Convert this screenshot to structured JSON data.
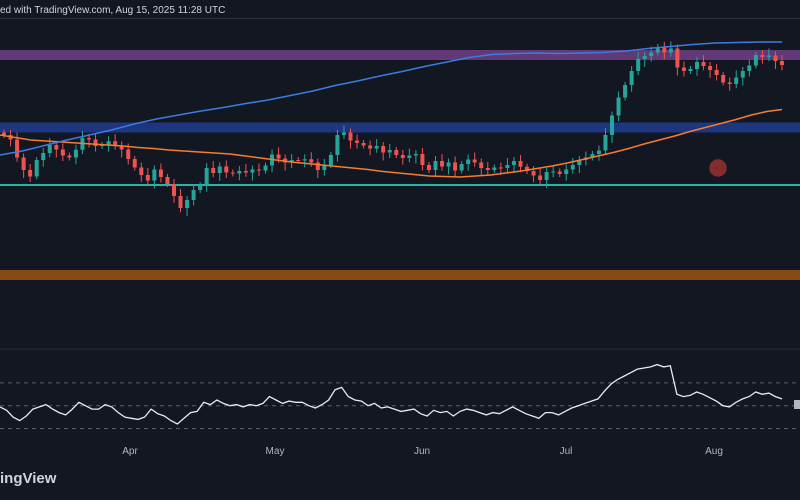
{
  "header": {
    "text": "ed with TradingView.com, Aug 15, 2025 11:28 UTC"
  },
  "branding": {
    "logo_text": "ingView"
  },
  "colors": {
    "background": "#131722",
    "candle_up": "#26a69a",
    "candle_down": "#ef5350",
    "ma_fast": "#f57c32",
    "ma_slow": "#3d7be0",
    "rsi_line": "#e8eaf0",
    "zone_purple": "#6a3d80",
    "zone_blue": "#1f3a8a",
    "zone_orange": "#8a4d14",
    "support_line": "#2bb3a6",
    "cross_marker": "#e0403a"
  },
  "chart_data": {
    "type": "candlestick",
    "x_axis_labels": [
      "Apr",
      "May",
      "Jun",
      "Jul",
      "Aug"
    ],
    "candles": [],
    "price_series_close": [
      66.0,
      64.2,
      57.0,
      52.0,
      49.4,
      56.0,
      58.8,
      62.0,
      60.2,
      57.8,
      57.0,
      60.1,
      64.8,
      64.2,
      61.6,
      62.0,
      63.5,
      61.8,
      60.2,
      56.4,
      53.0,
      50.0,
      47.8,
      52.2,
      49.2,
      46.4,
      41.6,
      36.8,
      40.0,
      44.0,
      46.0,
      52.8,
      50.8,
      53.4,
      51.0,
      50.6,
      51.6,
      51.0,
      52.2,
      51.8,
      53.8,
      58.2,
      56.6,
      55.0,
      56.0,
      55.8,
      56.3,
      55.0,
      52.0,
      54.0,
      58.0,
      66.0,
      67.0,
      63.8,
      62.8,
      61.8,
      60.6,
      61.6,
      59.0,
      60.0,
      58.0,
      56.8,
      57.8,
      58.4,
      54.0,
      52.0,
      55.6,
      53.4,
      55.0,
      51.8,
      54.4,
      56.2,
      55.0,
      52.8,
      52.0,
      53.0,
      52.8,
      54.0,
      55.6,
      53.3,
      51.6,
      49.8,
      48.0,
      51.2,
      51.4,
      50.4,
      52.2,
      54.0,
      56.0,
      57.0,
      58.4,
      59.8,
      66.0,
      73.8,
      81.0,
      86.0,
      91.6,
      96.4,
      97.6,
      99.0,
      101.2,
      99.0,
      100.6,
      93.0,
      91.6,
      92.4,
      95.2,
      93.6,
      92.0,
      90.0,
      87.0,
      86.4,
      89.0,
      91.6,
      93.8,
      98.0,
      97.2,
      97.8,
      95.6,
      94.0
    ],
    "ma_fast_series": [
      66.0,
      65.0,
      64.0,
      63.6,
      63.2,
      62.8,
      62.4,
      62.0,
      61.6,
      61.0,
      60.6,
      60.0,
      59.6,
      59.2,
      58.8,
      58.4,
      57.6,
      56.8,
      56.0,
      55.2,
      54.6,
      54.0,
      53.4,
      52.8,
      52.2,
      51.4,
      50.8,
      50.2,
      49.6,
      49.4,
      49.2,
      49.6,
      50.0,
      50.8,
      51.6,
      52.6,
      53.6,
      54.8,
      56.2,
      57.6,
      59.0,
      60.6,
      62.4,
      64.0,
      65.6,
      67.4,
      69.0,
      70.6,
      72.2,
      74.0,
      75.4,
      76.2
    ],
    "ma_slow_series": [
      58.0,
      59.6,
      61.8,
      64.0,
      66.0,
      68.0,
      70.4,
      72.4,
      74.0,
      75.6,
      77.0,
      78.6,
      80.0,
      81.8,
      83.6,
      85.8,
      87.6,
      89.6,
      91.4,
      93.4,
      95.2,
      97.0,
      98.2,
      98.6,
      98.8,
      98.6,
      98.8,
      99.0,
      99.6,
      100.6,
      101.4,
      102.2,
      102.8,
      103.0,
      103.2,
      103.2
    ],
    "rsi_series": [
      49,
      46,
      40,
      37,
      41,
      47,
      49,
      51,
      47,
      44,
      42,
      47,
      53,
      50,
      47,
      47,
      51,
      49,
      44,
      40,
      39,
      38,
      40,
      47,
      43,
      41,
      37,
      34,
      39,
      44,
      45,
      53,
      51,
      55,
      52,
      50,
      51,
      49,
      51,
      50,
      52,
      58,
      55,
      52,
      54,
      53,
      53,
      50,
      48,
      51,
      55,
      64,
      66,
      58,
      55,
      54,
      50,
      52,
      48,
      49,
      47,
      45,
      46,
      47,
      43,
      41,
      46,
      44,
      45,
      41,
      45,
      47,
      46,
      44,
      42,
      44,
      43,
      46,
      49,
      46,
      43,
      41,
      39,
      44,
      44,
      42,
      45,
      48,
      50,
      52,
      54,
      56,
      63,
      69,
      73,
      76,
      79,
      82,
      83,
      84,
      86,
      84,
      85,
      60,
      58,
      59,
      62,
      60,
      57,
      54,
      50,
      49,
      53,
      56,
      58,
      62,
      60,
      61,
      58,
      56
    ],
    "levels": {
      "resistance_zone_purple": [
        96.0,
        100.0
      ],
      "resistance_zone_blue": [
        67.0,
        71.0
      ],
      "support_line_teal": 46.0,
      "support_zone_orange": [
        8.0,
        12.0
      ]
    },
    "crossover_marker": true,
    "grid": false,
    "legend": "none"
  }
}
